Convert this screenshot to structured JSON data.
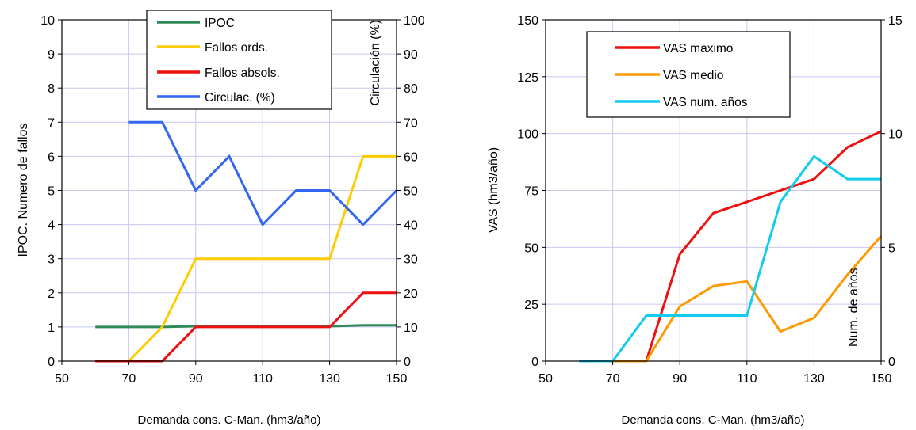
{
  "chart_data": [
    {
      "type": "line",
      "x": [
        60,
        70,
        80,
        90,
        100,
        110,
        120,
        130,
        140,
        150
      ],
      "xlim": [
        50,
        150
      ],
      "xticks": [
        "50",
        "70",
        "90",
        "110",
        "130",
        "150"
      ],
      "xlabel": "Demanda cons. C-Man. (hm3/año)",
      "ylabel": "IPOC.  Numero de fallos",
      "ylim": [
        0,
        10
      ],
      "yticks": [
        "0",
        "1",
        "2",
        "3",
        "4",
        "5",
        "6",
        "7",
        "8",
        "9",
        "10"
      ],
      "y2label": "Circulación (%)",
      "y2lim": [
        0,
        100
      ],
      "y2ticks": [
        "0",
        "10",
        "20",
        "30",
        "40",
        "50",
        "60",
        "70",
        "80",
        "90",
        "100"
      ],
      "grid": true,
      "legend_position": "top-right",
      "series": [
        {
          "name": "IPOC",
          "axis": "left",
          "color": "#2e8b57",
          "values": [
            1,
            1,
            1,
            1.02,
            1.02,
            1.02,
            1.02,
            1.02,
            1.05,
            1.05
          ]
        },
        {
          "name": "Fallos ords.",
          "axis": "left",
          "color": "#ffcc00",
          "values": [
            0,
            0,
            1,
            3,
            3,
            3,
            3,
            3,
            6,
            6
          ]
        },
        {
          "name": "Fallos absols.",
          "axis": "left",
          "color": "#ee1111",
          "values": [
            0,
            0,
            0,
            1,
            1,
            1,
            1,
            1,
            2,
            2
          ]
        },
        {
          "name": "Circulac. (%)",
          "axis": "right",
          "color": "#3366ee",
          "values": [
            null,
            70,
            70,
            50,
            60,
            40,
            50,
            50,
            40,
            50
          ]
        }
      ]
    },
    {
      "type": "line",
      "x": [
        60,
        70,
        80,
        90,
        100,
        110,
        120,
        130,
        140,
        150
      ],
      "xlim": [
        50,
        150
      ],
      "xticks": [
        "50",
        "70",
        "90",
        "110",
        "130",
        "150"
      ],
      "xlabel": "Demanda cons. C-Man. (hm3/año)",
      "ylabel": "VAS (hm3/año)",
      "ylim": [
        0,
        150
      ],
      "yticks": [
        "0",
        "25",
        "50",
        "75",
        "100",
        "125",
        "150"
      ],
      "y2label": "Num. de años",
      "y2lim": [
        0,
        15
      ],
      "y2ticks": [
        "0",
        "5",
        "10",
        "15"
      ],
      "grid": true,
      "legend_position": "top-left",
      "series": [
        {
          "name": "VAS maximo",
          "axis": "left",
          "color": "#ee1111",
          "values": [
            null,
            null,
            0,
            47,
            65,
            70,
            75,
            80,
            94,
            101
          ]
        },
        {
          "name": "VAS medio",
          "axis": "left",
          "color": "#ff9900",
          "values": [
            null,
            0,
            0,
            24,
            33,
            35,
            13,
            19,
            38,
            55
          ]
        },
        {
          "name": "VAS num. años",
          "axis": "right",
          "color": "#11ccee",
          "values": [
            0,
            0,
            2,
            2,
            2,
            2,
            7,
            9,
            8,
            8
          ]
        }
      ]
    }
  ]
}
